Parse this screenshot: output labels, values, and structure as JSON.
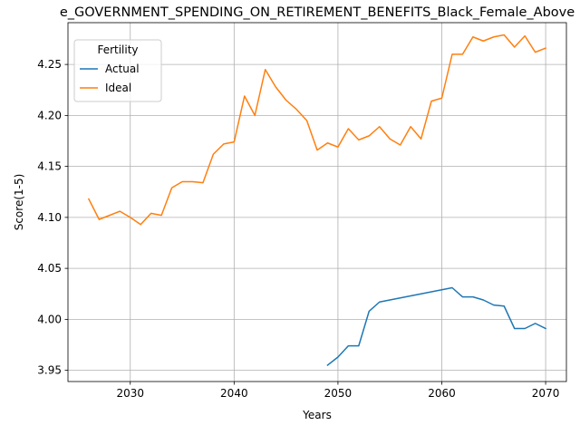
{
  "chart_data": {
    "type": "line",
    "title": "e_GOVERNMENT_SPENDING_ON_RETIREMENT_BENEFITS_Black_Female_Above",
    "xlabel": "Years",
    "ylabel": "Score(1-5)",
    "xlim": [
      2024,
      2072
    ],
    "ylim": [
      3.939,
      4.291
    ],
    "xticks": [
      2030,
      2040,
      2050,
      2060,
      2070
    ],
    "xtick_labels": [
      "2030",
      "2040",
      "2050",
      "2060",
      "2070"
    ],
    "yticks": [
      3.95,
      4.0,
      4.05,
      4.1,
      4.15,
      4.2,
      4.25
    ],
    "ytick_labels": [
      "3.95",
      "4.00",
      "4.05",
      "4.10",
      "4.15",
      "4.20",
      "4.25"
    ],
    "grid": true,
    "legend": {
      "title": "Fertility",
      "placement": "top-left"
    },
    "series": [
      {
        "name": "Actual",
        "color": "#1f77b4",
        "x": [
          2049,
          2050,
          2051,
          2052,
          2053,
          2054,
          2055,
          2056,
          2057,
          2058,
          2059,
          2060,
          2061,
          2062,
          2063,
          2064,
          2065,
          2066,
          2067,
          2068,
          2069,
          2070
        ],
        "y": [
          3.955,
          3.963,
          3.974,
          3.974,
          4.008,
          4.017,
          4.019,
          4.021,
          4.023,
          4.025,
          4.027,
          4.029,
          4.031,
          4.022,
          4.022,
          4.019,
          4.014,
          4.013,
          3.991,
          3.991,
          3.996,
          3.991
        ]
      },
      {
        "name": "Ideal",
        "color": "#ff7f0e",
        "x": [
          2026,
          2027,
          2028,
          2029,
          2030,
          2031,
          2032,
          2033,
          2034,
          2035,
          2036,
          2037,
          2038,
          2039,
          2040,
          2041,
          2042,
          2043,
          2044,
          2045,
          2046,
          2047,
          2048,
          2049,
          2050,
          2051,
          2052,
          2053,
          2054,
          2055,
          2056,
          2057,
          2058,
          2059,
          2060,
          2061,
          2062,
          2063,
          2064,
          2065,
          2066,
          2067,
          2068,
          2069,
          2070
        ],
        "y": [
          4.118,
          4.098,
          4.102,
          4.106,
          4.1,
          4.093,
          4.104,
          4.102,
          4.129,
          4.135,
          4.135,
          4.134,
          4.162,
          4.172,
          4.174,
          4.219,
          4.2,
          4.245,
          4.228,
          4.215,
          4.206,
          4.195,
          4.166,
          4.173,
          4.169,
          4.187,
          4.176,
          4.18,
          4.189,
          4.177,
          4.171,
          4.189,
          4.177,
          4.214,
          4.217,
          4.26,
          4.26,
          4.277,
          4.273,
          4.277,
          4.279,
          4.267,
          4.278,
          4.262,
          4.266
        ]
      }
    ]
  }
}
